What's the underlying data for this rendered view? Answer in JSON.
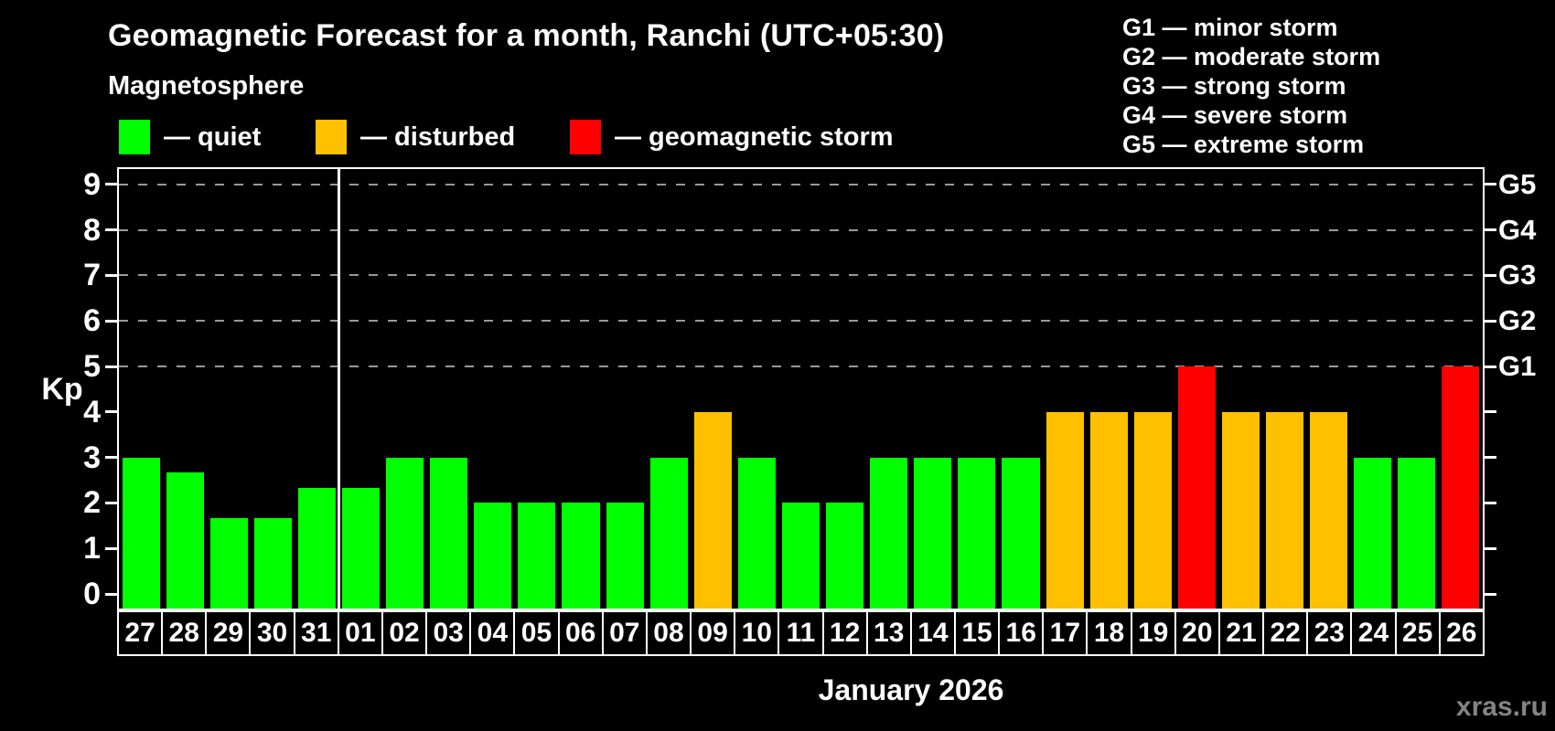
{
  "header": {
    "title": "Geomagnetic Forecast for a month, Ranchi (UTC+05:30)",
    "subtitle": "Magnetosphere"
  },
  "legend": {
    "items": [
      {
        "label": "— quiet",
        "color": "#00ff00"
      },
      {
        "label": "— disturbed",
        "color": "#ffc000"
      },
      {
        "label": "— geomagnetic storm",
        "color": "#ff0000"
      }
    ]
  },
  "storm_scale_legend": {
    "lines": [
      "G1 — minor storm",
      "G2 — moderate storm",
      "G3 — strong storm",
      "G4 — severe storm",
      "G5 — extreme storm"
    ]
  },
  "watermark": "xras.ru",
  "chart_data": {
    "type": "bar",
    "title": "Geomagnetic Forecast for a month, Ranchi (UTC+05:30)",
    "xlabel": "January 2026",
    "ylabel": "Kp",
    "ylim": [
      0,
      9
    ],
    "yticks": [
      0,
      1,
      2,
      3,
      4,
      5,
      6,
      7,
      8,
      9
    ],
    "gridlines_at": [
      5,
      6,
      7,
      8,
      9
    ],
    "grid": true,
    "legend_position": "top",
    "right_axis_labels": [
      {
        "value": 5,
        "label": "G1"
      },
      {
        "value": 6,
        "label": "G2"
      },
      {
        "value": 7,
        "label": "G3"
      },
      {
        "value": 8,
        "label": "G4"
      },
      {
        "value": 9,
        "label": "G5"
      }
    ],
    "month_separator_after_index": 4,
    "categories": [
      "27",
      "28",
      "29",
      "30",
      "31",
      "01",
      "02",
      "03",
      "04",
      "05",
      "06",
      "07",
      "08",
      "09",
      "10",
      "11",
      "12",
      "13",
      "14",
      "15",
      "16",
      "17",
      "18",
      "19",
      "20",
      "21",
      "22",
      "23",
      "24",
      "25",
      "26"
    ],
    "values": [
      3.0,
      2.67,
      1.67,
      1.67,
      2.33,
      2.33,
      3.0,
      3.0,
      2.0,
      2.0,
      2.0,
      2.0,
      3.0,
      4.0,
      3.0,
      2.0,
      2.0,
      3.0,
      3.0,
      3.0,
      3.0,
      4.0,
      4.0,
      4.0,
      5.0,
      4.0,
      4.0,
      4.0,
      3.0,
      3.0,
      5.0
    ],
    "statuses": [
      "quiet",
      "quiet",
      "quiet",
      "quiet",
      "quiet",
      "quiet",
      "quiet",
      "quiet",
      "quiet",
      "quiet",
      "quiet",
      "quiet",
      "quiet",
      "disturbed",
      "quiet",
      "quiet",
      "quiet",
      "quiet",
      "quiet",
      "quiet",
      "quiet",
      "disturbed",
      "disturbed",
      "disturbed",
      "storm",
      "disturbed",
      "disturbed",
      "disturbed",
      "quiet",
      "quiet",
      "storm"
    ],
    "status_colors": {
      "quiet": "#00ff00",
      "disturbed": "#ffc000",
      "storm": "#ff0000"
    }
  }
}
